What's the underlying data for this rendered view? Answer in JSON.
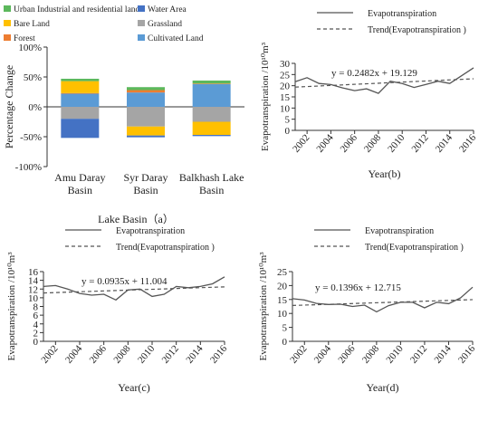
{
  "colors": {
    "urban": "#5cb85c",
    "water": "#4472c4",
    "bare": "#ffc000",
    "grass": "#a5a5a5",
    "forest": "#ed7d31",
    "cultivated": "#5b9bd5",
    "line": "#555555",
    "axis": "#333333"
  },
  "chart_data": [
    {
      "type": "bar",
      "stacked": true,
      "categories": [
        "Amu Daray Basin",
        "Syr Daray Basin",
        "Balkhash Lake Basin"
      ],
      "category_lines": [
        [
          "Amu Daray",
          "Basin"
        ],
        [
          "Syr Daray",
          "Basin"
        ],
        [
          "Balkhash Lake",
          "Basin"
        ]
      ],
      "series": [
        {
          "name": "Urban Industrial and residential land",
          "key": "urban",
          "values": [
            4,
            5,
            5
          ]
        },
        {
          "name": "Water Area",
          "key": "water",
          "values": [
            -32,
            -3,
            -2
          ]
        },
        {
          "name": "Bare Land",
          "key": "bare",
          "values": [
            20,
            -15,
            -22
          ]
        },
        {
          "name": "Grassland",
          "key": "grass",
          "values": [
            -20,
            -33,
            -25
          ]
        },
        {
          "name": "Forest",
          "key": "forest",
          "values": [
            1,
            4,
            1
          ]
        },
        {
          "name": "Cultivated Land",
          "key": "cultivated",
          "values": [
            22,
            24,
            38
          ]
        }
      ],
      "positive_order": [
        "cultivated",
        "forest",
        "bare",
        "urban"
      ],
      "negative_order": [
        "grass",
        "bare",
        "water"
      ],
      "ylabel": "Percentage Change",
      "xlabel": "Lake Basin（a）",
      "ylim": [
        -100,
        100
      ],
      "yticks": [
        -100,
        -50,
        0,
        50,
        100
      ],
      "ytick_labels": [
        "-100%",
        "-50%",
        "0%",
        "50%",
        "100%"
      ],
      "legend_position": "top"
    },
    {
      "type": "line",
      "x": [
        2001,
        2002,
        2003,
        2004,
        2005,
        2006,
        2007,
        2008,
        2009,
        2010,
        2011,
        2012,
        2013,
        2014,
        2015,
        2016
      ],
      "series": [
        {
          "name": "Evapotranspiration",
          "values": [
            21.8,
            23.6,
            21.0,
            20.5,
            19.0,
            17.8,
            18.6,
            16.6,
            22.0,
            21.0,
            19.2,
            20.6,
            22.0,
            21.0,
            24.5,
            28.0
          ]
        },
        {
          "name": "Trend(Evapotranspiration )",
          "dashed": true,
          "trend": {
            "slope": 0.2482,
            "intercept": 19.129
          }
        }
      ],
      "equation": "y = 0.2482x + 19.129",
      "xlabel": "Year(b)",
      "ylabel": "Evapotranspiration /10¹⁰m³",
      "xticks": [
        "2002",
        "2004",
        "2006",
        "2008",
        "2010",
        "2012",
        "2014",
        "2016"
      ],
      "ylim": [
        0,
        30
      ],
      "yticks": [
        0,
        5,
        10,
        15,
        20,
        25,
        30
      ],
      "legend_position": "top"
    },
    {
      "type": "line",
      "x": [
        2001,
        2002,
        2003,
        2004,
        2005,
        2006,
        2007,
        2008,
        2009,
        2010,
        2011,
        2012,
        2013,
        2014,
        2015,
        2016
      ],
      "series": [
        {
          "name": "Evapotranspiration",
          "values": [
            12.6,
            12.8,
            12.0,
            11.0,
            10.6,
            10.8,
            9.5,
            11.8,
            12.0,
            10.3,
            10.8,
            12.6,
            12.3,
            12.6,
            13.2,
            14.8
          ]
        },
        {
          "name": "Trend(Evapotranspiration )",
          "dashed": true,
          "trend": {
            "slope": 0.0935,
            "intercept": 11.004
          }
        }
      ],
      "equation": "y = 0.0935x + 11.004",
      "xlabel": "Year(c)",
      "ylabel": "Evapotranspiration /10¹⁰m³",
      "xticks": [
        "2002",
        "2004",
        "2006",
        "2008",
        "2010",
        "2012",
        "2014",
        "2016"
      ],
      "ylim": [
        0,
        16
      ],
      "yticks": [
        0,
        2,
        4,
        6,
        8,
        10,
        12,
        14,
        16
      ],
      "legend_position": "top"
    },
    {
      "type": "line",
      "x": [
        2001,
        2002,
        2003,
        2004,
        2005,
        2006,
        2007,
        2008,
        2009,
        2010,
        2011,
        2012,
        2013,
        2014,
        2015,
        2016
      ],
      "series": [
        {
          "name": "Evapotranspiration",
          "values": [
            15.3,
            14.8,
            13.6,
            13.2,
            13.3,
            12.5,
            13.0,
            10.6,
            12.8,
            14.0,
            14.0,
            12.0,
            14.0,
            13.5,
            15.6,
            19.4
          ]
        },
        {
          "name": "Trend(Evapotranspiration )",
          "dashed": true,
          "trend": {
            "slope": 0.1396,
            "intercept": 12.715
          }
        }
      ],
      "equation": "y = 0.1396x + 12.715",
      "xlabel": "Year(d)",
      "ylabel": "Evapotranspiration /10¹⁰m³",
      "xticks": [
        "2002",
        "2004",
        "2006",
        "2008",
        "2010",
        "2012",
        "2014",
        "2016"
      ],
      "ylim": [
        0,
        25
      ],
      "yticks": [
        0,
        5,
        10,
        15,
        20,
        25
      ],
      "legend_position": "top"
    }
  ]
}
